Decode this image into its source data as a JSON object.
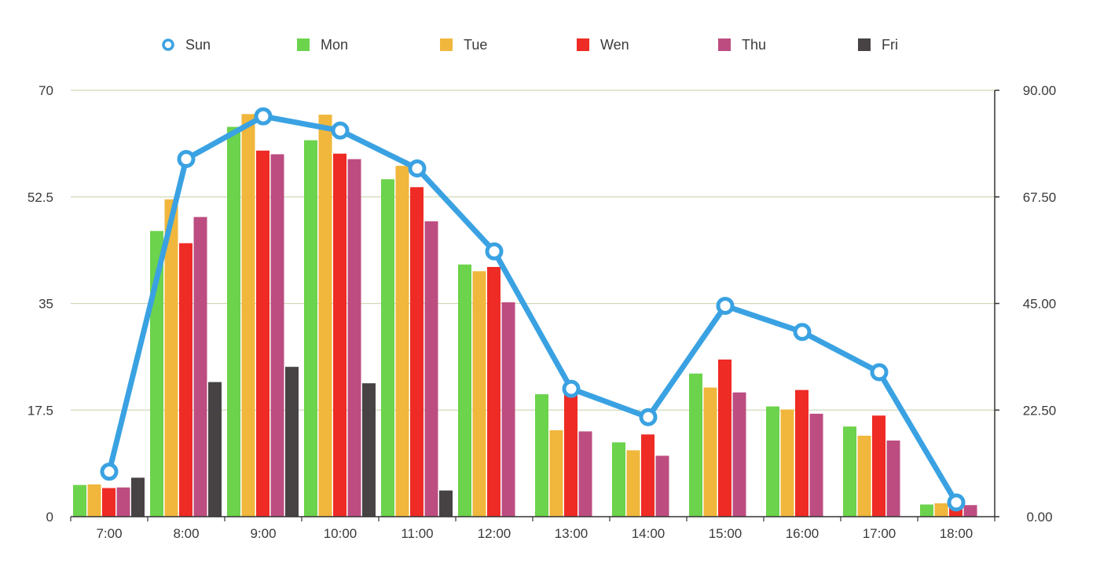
{
  "chart_data": {
    "type": "bar",
    "categories": [
      "7:00",
      "8:00",
      "9:00",
      "10:00",
      "11:00",
      "12:00",
      "13:00",
      "14:00",
      "15:00",
      "16:00",
      "17:00",
      "18:00"
    ],
    "series": [
      {
        "name": "Mon",
        "type": "bar",
        "axis": "left",
        "color": "#6cd34c",
        "values": [
          5.2,
          46.9,
          64,
          61.8,
          55.4,
          41.4,
          20.1,
          12.2,
          23.5,
          18.1,
          14.8,
          2
        ]
      },
      {
        "name": "Tue",
        "type": "bar",
        "axis": "left",
        "color": "#f0b73c",
        "values": [
          5.3,
          52.1,
          66.1,
          66,
          57.6,
          40.3,
          14.2,
          10.9,
          21.2,
          17.6,
          13.3,
          2.2
        ]
      },
      {
        "name": "Wen",
        "type": "bar",
        "axis": "left",
        "color": "#ee2b24",
        "values": [
          4.7,
          44.9,
          60.1,
          59.6,
          54.1,
          41,
          20.1,
          13.5,
          25.8,
          20.8,
          16.6,
          1.6
        ]
      },
      {
        "name": "Thu",
        "type": "bar",
        "axis": "left",
        "color": "#bd4d80",
        "values": [
          4.8,
          49.2,
          59.5,
          58.7,
          48.5,
          35.2,
          14,
          10,
          20.4,
          16.9,
          12.5,
          1.9
        ]
      },
      {
        "name": "Fri",
        "type": "bar",
        "axis": "left",
        "color": "#474244",
        "values": [
          6.4,
          22.1,
          24.6,
          21.9,
          4.3,
          null,
          null,
          null,
          null,
          null,
          null,
          null
        ]
      },
      {
        "name": "Sun",
        "type": "line",
        "axis": "right",
        "color": "#3aa2e2",
        "values": [
          9.5,
          75.5,
          84.5,
          81.5,
          73.5,
          56,
          27,
          21,
          44.5,
          39,
          30.5,
          3
        ]
      }
    ],
    "legend_order": [
      "Sun",
      "Mon",
      "Tue",
      "Wen",
      "Thu",
      "Fri"
    ],
    "legend_position": "top",
    "y_left": {
      "min": 0,
      "max": 70,
      "ticks": [
        0,
        17.5,
        35,
        52.5,
        70
      ],
      "tick_labels": [
        "0",
        "17.5",
        "35",
        "52.5",
        "70"
      ]
    },
    "y_right": {
      "min": 0,
      "max": 90,
      "ticks": [
        0,
        22.5,
        45,
        67.5,
        90
      ],
      "tick_labels": [
        "0.00",
        "22.50",
        "45.00",
        "67.50",
        "90.00"
      ]
    },
    "grid": true,
    "grid_color": "#cfd9b8",
    "title": "",
    "xlabel": "",
    "ylabel": ""
  }
}
